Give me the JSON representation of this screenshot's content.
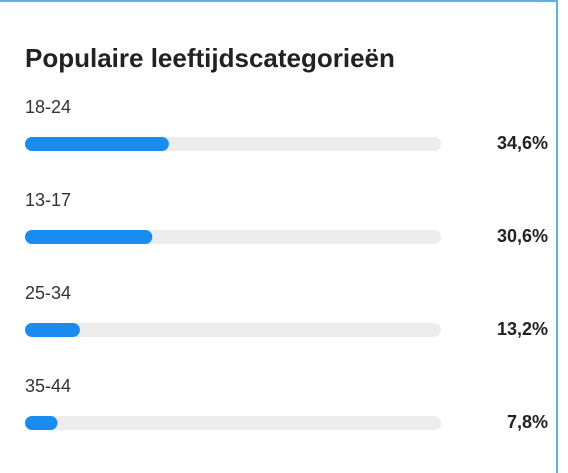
{
  "chart_data": {
    "type": "bar",
    "orientation": "horizontal",
    "title": "Populaire leeftijdscategorieën",
    "categories": [
      "18-24",
      "13-17",
      "25-34",
      "35-44"
    ],
    "values": [
      34.6,
      30.6,
      13.2,
      7.8
    ],
    "value_labels": [
      "34,6%",
      "30,6%",
      "13,2%",
      "7,8%"
    ],
    "xlim": [
      0,
      100
    ],
    "color": "#1a8cf0",
    "track_color": "#ededed"
  }
}
